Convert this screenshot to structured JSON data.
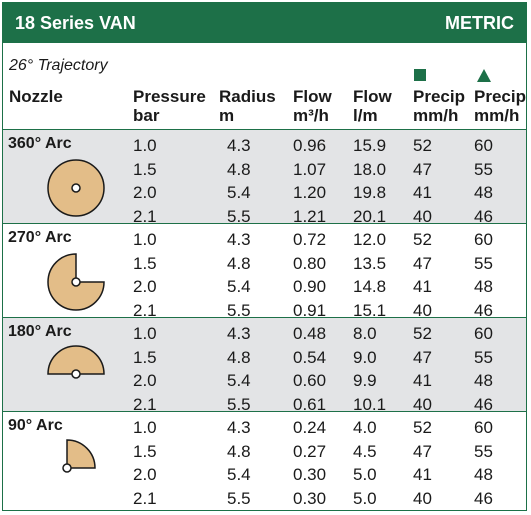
{
  "title": "18 Series VAN",
  "units": "METRIC",
  "trajectory": "26° Trajectory",
  "headers": {
    "nozzle": "Nozzle",
    "pressure": [
      "Pressure",
      "bar"
    ],
    "radius": [
      "Radius",
      "m"
    ],
    "flow_m3h": [
      "Flow",
      "m³/h"
    ],
    "flow_lm": [
      "Flow",
      "l/m"
    ],
    "precip_square": [
      "Precip",
      "mm/h"
    ],
    "precip_triangle": [
      "Precip",
      "mm/h"
    ]
  },
  "colors": {
    "accent": "#1d7048",
    "shade": "#e3e4e6",
    "nozzle_fill": "#e3bd88"
  },
  "groups": [
    {
      "arc": "360° Arc",
      "shape": "full-circle",
      "rows": [
        [
          "1.0",
          "4.3",
          "0.96",
          "15.9",
          "52",
          "60"
        ],
        [
          "1.5",
          "4.8",
          "1.07",
          "18.0",
          "47",
          "55"
        ],
        [
          "2.0",
          "5.4",
          "1.20",
          "19.8",
          "41",
          "48"
        ],
        [
          "2.1",
          "5.5",
          "1.21",
          "20.1",
          "40",
          "46"
        ]
      ]
    },
    {
      "arc": "270° Arc",
      "shape": "three-quarter-circle",
      "rows": [
        [
          "1.0",
          "4.3",
          "0.72",
          "12.0",
          "52",
          "60"
        ],
        [
          "1.5",
          "4.8",
          "0.80",
          "13.5",
          "47",
          "55"
        ],
        [
          "2.0",
          "5.4",
          "0.90",
          "14.8",
          "41",
          "48"
        ],
        [
          "2.1",
          "5.5",
          "0.91",
          "15.1",
          "40",
          "46"
        ]
      ]
    },
    {
      "arc": "180° Arc",
      "shape": "half-circle",
      "rows": [
        [
          "1.0",
          "4.3",
          "0.48",
          "8.0",
          "52",
          "60"
        ],
        [
          "1.5",
          "4.8",
          "0.54",
          "9.0",
          "47",
          "55"
        ],
        [
          "2.0",
          "5.4",
          "0.60",
          "9.9",
          "41",
          "48"
        ],
        [
          "2.1",
          "5.5",
          "0.61",
          "10.1",
          "40",
          "46"
        ]
      ]
    },
    {
      "arc": "90° Arc",
      "shape": "quarter-circle",
      "rows": [
        [
          "1.0",
          "4.3",
          "0.24",
          "4.0",
          "52",
          "60"
        ],
        [
          "1.5",
          "4.8",
          "0.27",
          "4.5",
          "47",
          "55"
        ],
        [
          "2.0",
          "5.4",
          "0.30",
          "5.0",
          "41",
          "48"
        ],
        [
          "2.1",
          "5.5",
          "0.30",
          "5.0",
          "40",
          "46"
        ]
      ]
    }
  ]
}
